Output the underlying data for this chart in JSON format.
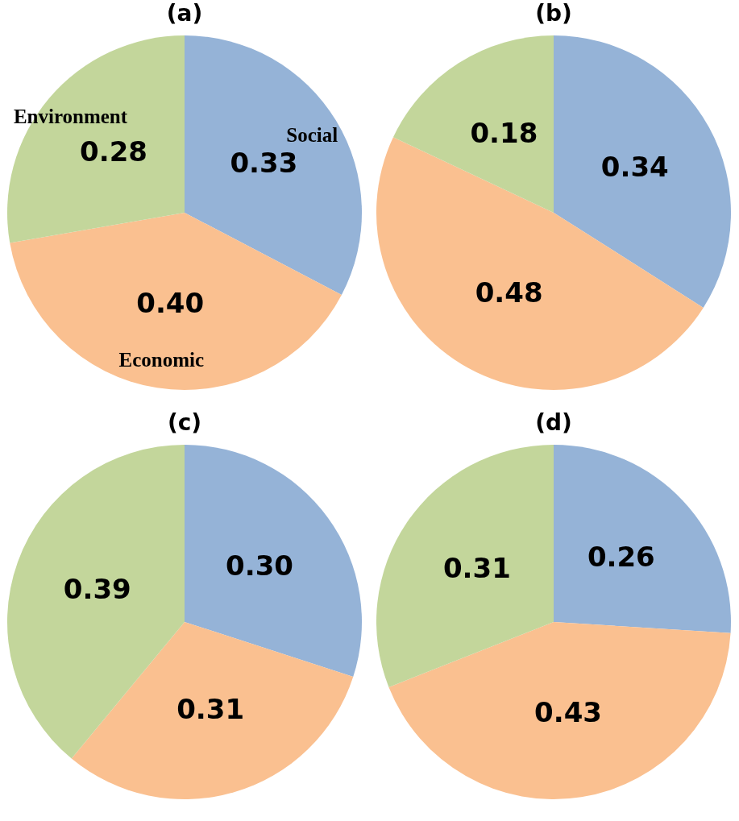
{
  "chart_data": [
    {
      "type": "pie",
      "title": "(a)",
      "categories": [
        "Social",
        "Economic",
        "Environment"
      ],
      "values": [
        0.33,
        0.4,
        0.28
      ],
      "value_labels": [
        "0.33",
        "0.40",
        "0.28"
      ],
      "colors": [
        "#95b3d7",
        "#fac090",
        "#c3d69b"
      ]
    },
    {
      "type": "pie",
      "title": "(b)",
      "categories": [
        null,
        null,
        null
      ],
      "values": [
        0.34,
        0.48,
        0.18
      ],
      "value_labels": [
        "0.34",
        "0.48",
        "0.18"
      ],
      "colors": [
        "#95b3d7",
        "#fac090",
        "#c3d69b"
      ]
    },
    {
      "type": "pie",
      "title": "(c)",
      "categories": [
        null,
        null,
        null
      ],
      "values": [
        0.3,
        0.31,
        0.39
      ],
      "value_labels": [
        "0.30",
        "0.31",
        "0.39"
      ],
      "colors": [
        "#95b3d7",
        "#fac090",
        "#c3d69b"
      ]
    },
    {
      "type": "pie",
      "title": "(d)",
      "categories": [
        null,
        null,
        null
      ],
      "values": [
        0.26,
        0.43,
        0.31
      ],
      "value_labels": [
        "0.26",
        "0.43",
        "0.31"
      ],
      "colors": [
        "#95b3d7",
        "#fac090",
        "#c3d69b"
      ]
    }
  ]
}
